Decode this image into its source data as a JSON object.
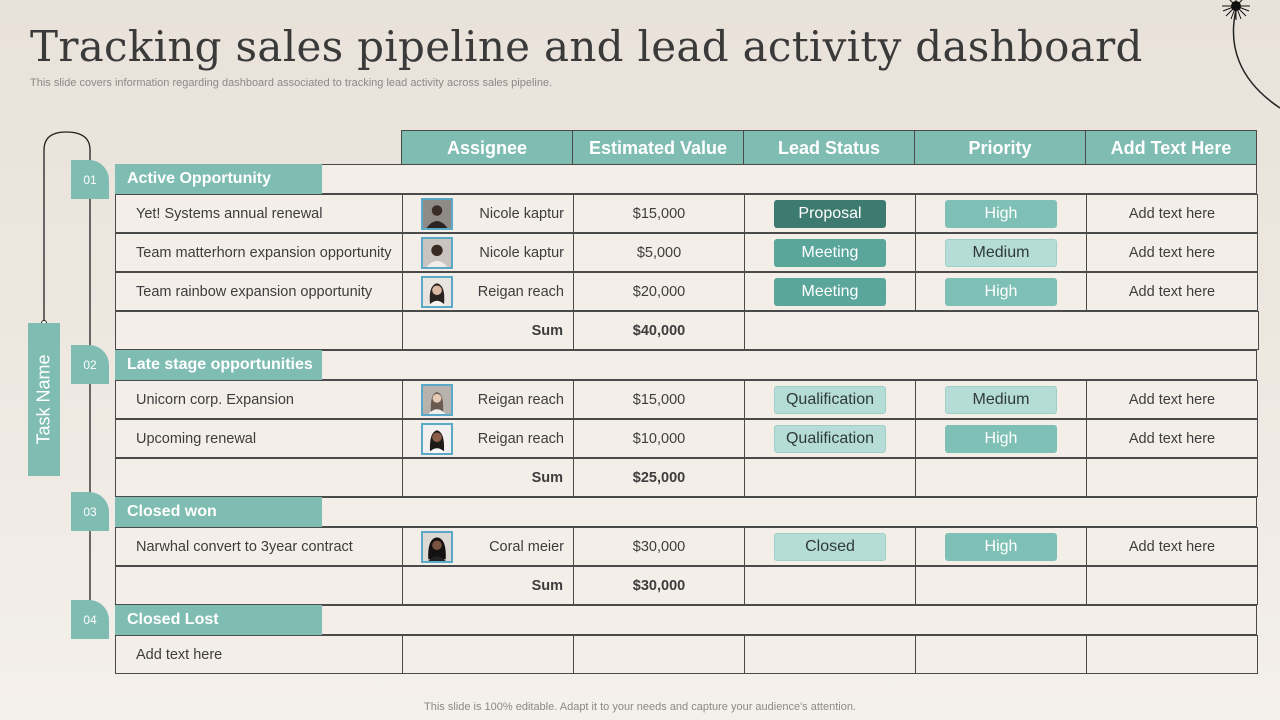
{
  "title": "Tracking sales pipeline and lead activity dashboard",
  "subtitle": "This slide covers information regarding dashboard associated to tracking lead activity  across sales pipeline.",
  "task_label": "Task Name",
  "headers": [
    "Assignee",
    "Estimated Value",
    "Lead Status",
    "Priority",
    "Add Text Here"
  ],
  "groups": [
    {
      "num": "01",
      "label": "Active Opportunity",
      "rows": [
        {
          "task": "Yet! Systems annual renewal",
          "assignee": "Nicole kaptur",
          "value": "$15,000",
          "status": "Proposal",
          "priority": "High",
          "text": "Add text here"
        },
        {
          "task": "Team matterhorn expansion opportunity",
          "assignee": "Nicole kaptur",
          "value": "$5,000",
          "status": "Meeting",
          "priority": "Medium",
          "text": "Add text here"
        },
        {
          "task": "Team rainbow expansion opportunity",
          "assignee": "Reigan reach",
          "value": "$20,000",
          "status": "Meeting",
          "priority": "High",
          "text": "Add text here"
        }
      ],
      "sum_label": "Sum",
      "sum_value": "$40,000"
    },
    {
      "num": "02",
      "label": "Late stage opportunities",
      "rows": [
        {
          "task": "Unicorn corp. Expansion",
          "assignee": "Reigan reach",
          "value": "$15,000",
          "status": "Qualification",
          "priority": "Medium",
          "text": "Add text here"
        },
        {
          "task": "Upcoming renewal",
          "assignee": "Reigan reach",
          "value": "$10,000",
          "status": "Qualification",
          "priority": "High",
          "text": "Add text here"
        }
      ],
      "sum_label": "Sum",
      "sum_value": "$25,000"
    },
    {
      "num": "03",
      "label": "Closed won",
      "rows": [
        {
          "task": "Narwhal convert to 3year contract",
          "assignee": "Coral meier",
          "value": "$30,000",
          "status": "Closed",
          "priority": "High",
          "text": "Add text here"
        }
      ],
      "sum_label": "Sum",
      "sum_value": "$30,000"
    },
    {
      "num": "04",
      "label": "Closed Lost",
      "rows": [
        {
          "task": "Add text here"
        }
      ]
    }
  ],
  "footer": "This slide is 100% editable. Adapt it to your needs and capture your audience's attention.",
  "colors": {
    "teal": "#7fbdb3",
    "teal_dark": "#3d7a70",
    "teal_mid": "#5aa69a",
    "teal_light": "#b5dcd6"
  }
}
